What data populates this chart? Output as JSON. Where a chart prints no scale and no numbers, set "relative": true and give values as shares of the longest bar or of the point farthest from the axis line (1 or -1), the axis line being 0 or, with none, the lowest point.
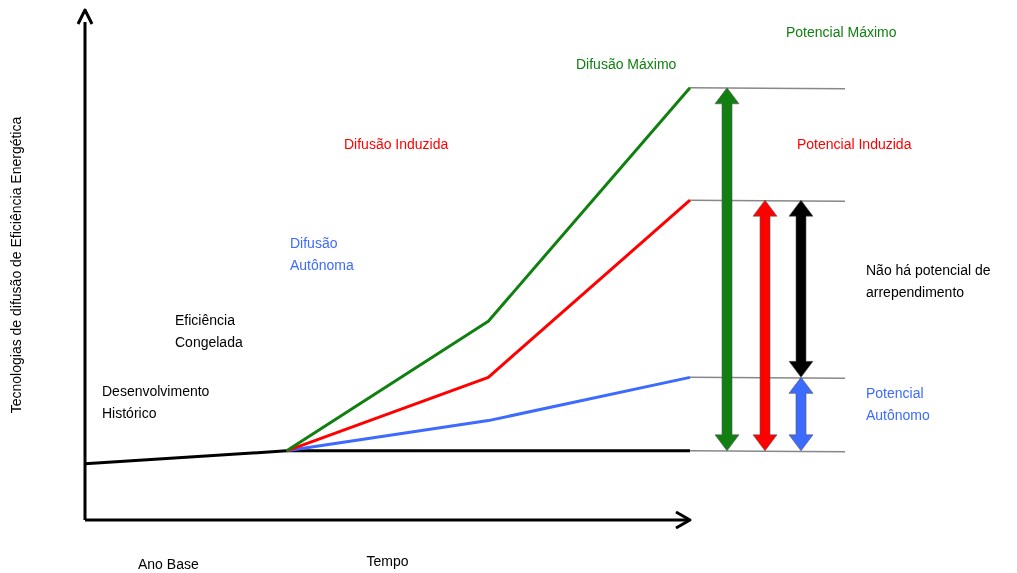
{
  "chart_data": {
    "type": "line",
    "relative": true,
    "xlabel": "Tempo",
    "ylabel": "Tecnologias de difusão de Eficiência Energética",
    "categories": [
      null,
      null,
      null,
      null
    ],
    "marker": "none",
    "grid": false,
    "legend": false,
    "series": [
      {
        "color": "#000000",
        "values": [
          0.13,
          0.16,
          0.16,
          0.16
        ]
      },
      {
        "name": "Difusão Autônoma",
        "color": "#3d6bff",
        "values": [
          null,
          0.16,
          0.23,
          0.33
        ]
      },
      {
        "name": "Difusão Induzida",
        "color": "#ff0000",
        "values": [
          null,
          0.16,
          0.33,
          0.74
        ]
      },
      {
        "name": "Difusão Máximo",
        "color": "#118011",
        "values": [
          null,
          0.16,
          0.46,
          1
        ]
      }
    ],
    "annotations": [
      "Desenvolvimento Histórico",
      "Eficiência Congelada",
      "Potencial Máximo",
      "Potencial Induzida",
      "Não há potencial de arrependimento",
      "Potencial Autônomo",
      "Ano Base"
    ]
  }
}
